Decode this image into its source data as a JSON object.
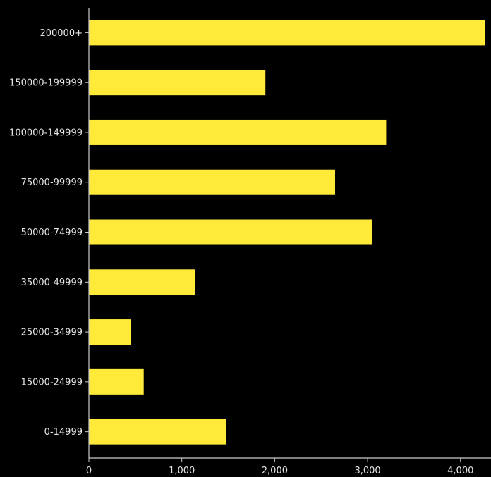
{
  "chart_data": {
    "type": "bar",
    "orientation": "horizontal",
    "categories": [
      "200000+",
      "150000-199999",
      "100000-149999",
      "75000-99999",
      "50000-74999",
      "35000-49999",
      "25000-34999",
      "15000-24999",
      "0-14999"
    ],
    "values": [
      4260,
      1900,
      3200,
      2650,
      3050,
      1140,
      450,
      590,
      1480
    ],
    "xticks": [
      0,
      1000,
      2000,
      3000,
      4000
    ],
    "xtick_labels": [
      "0",
      "1,000",
      "2,000",
      "3,000",
      "4,000"
    ],
    "xlim": [
      0,
      4260
    ],
    "title": "",
    "xlabel": "",
    "ylabel": "",
    "grid": false,
    "colors": {
      "background": "#000000",
      "bar": "#ffea3a",
      "axis": "#cccccc",
      "text": "#e6e6e6"
    }
  }
}
